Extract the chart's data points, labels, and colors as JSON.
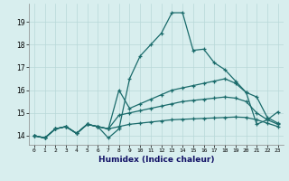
{
  "title": "",
  "xlabel": "Humidex (Indice chaleur)",
  "bg_color": "#d8eeee",
  "grid_color": "#b8d8d8",
  "line_color": "#1a6b6b",
  "xlim": [
    -0.5,
    23.5
  ],
  "ylim": [
    13.6,
    19.8
  ],
  "xticks": [
    0,
    1,
    2,
    3,
    4,
    5,
    6,
    7,
    8,
    9,
    10,
    11,
    12,
    13,
    14,
    15,
    16,
    17,
    18,
    19,
    20,
    21,
    22,
    23
  ],
  "yticks": [
    14,
    15,
    16,
    17,
    18,
    19
  ],
  "series": [
    [
      14.0,
      13.9,
      14.3,
      14.4,
      14.1,
      14.5,
      14.4,
      13.9,
      14.3,
      16.5,
      17.5,
      18.0,
      18.5,
      19.4,
      19.4,
      17.75,
      17.8,
      17.2,
      16.9,
      16.4,
      15.9,
      15.7,
      14.8,
      14.55
    ],
    [
      14.0,
      13.9,
      14.3,
      14.4,
      14.1,
      14.5,
      14.4,
      14.3,
      16.0,
      15.2,
      15.4,
      15.6,
      15.8,
      16.0,
      16.1,
      16.2,
      16.3,
      16.4,
      16.5,
      16.3,
      15.9,
      14.5,
      14.7,
      15.05
    ],
    [
      14.0,
      13.9,
      14.3,
      14.4,
      14.1,
      14.5,
      14.4,
      14.3,
      14.9,
      15.0,
      15.1,
      15.2,
      15.3,
      15.4,
      15.5,
      15.55,
      15.6,
      15.65,
      15.7,
      15.65,
      15.5,
      15.0,
      14.7,
      14.5
    ],
    [
      14.0,
      13.9,
      14.3,
      14.4,
      14.1,
      14.5,
      14.4,
      14.3,
      14.4,
      14.5,
      14.55,
      14.6,
      14.65,
      14.7,
      14.72,
      14.74,
      14.76,
      14.78,
      14.8,
      14.82,
      14.8,
      14.7,
      14.55,
      14.4
    ]
  ]
}
